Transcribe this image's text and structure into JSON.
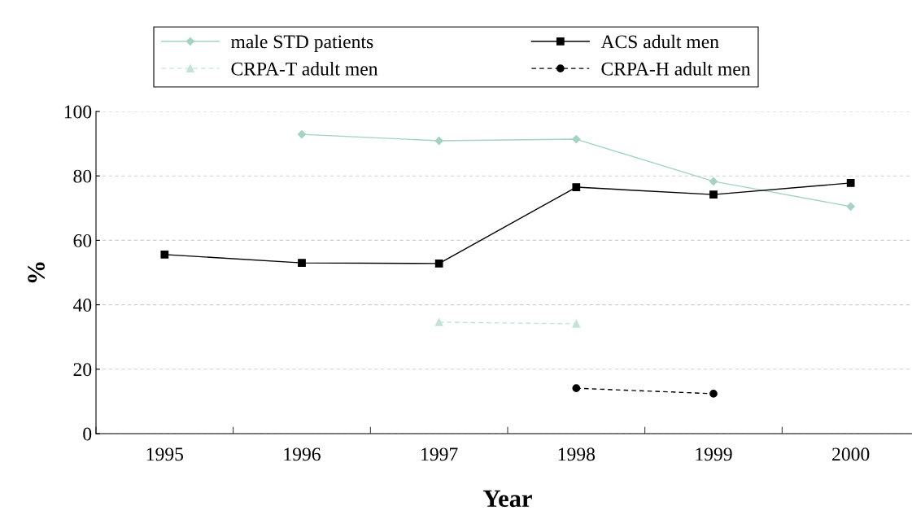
{
  "chart_data": {
    "type": "line",
    "xlabel": "Year",
    "ylabel": "%",
    "categories": [
      "1995",
      "1996",
      "1997",
      "1998",
      "1999",
      "2000"
    ],
    "ylim": [
      0,
      100
    ],
    "yticks": [
      0,
      20,
      40,
      60,
      80,
      100
    ],
    "grid": "y",
    "legend": "top",
    "series": [
      {
        "name": "male STD patients",
        "color": "#a3d3c3",
        "marker": "diamond",
        "line_style": "solid",
        "values": [
          null,
          92.9,
          90.9,
          91.4,
          78.3,
          70.5
        ]
      },
      {
        "name": "ACS adult men",
        "color": "#000000",
        "marker": "square",
        "line_style": "solid",
        "values": [
          55.6,
          53.0,
          52.8,
          76.5,
          74.2,
          77.8
        ]
      },
      {
        "name": "CRPA-T adult men",
        "color": "#c3e3d8",
        "marker": "triangle",
        "line_style": "dashed",
        "values": [
          null,
          null,
          34.6,
          34.1,
          null,
          null
        ]
      },
      {
        "name": "CRPA-H adult men",
        "color": "#000000",
        "marker": "circle",
        "line_style": "dashed",
        "values": [
          null,
          null,
          null,
          14.1,
          12.4,
          null
        ]
      }
    ]
  }
}
